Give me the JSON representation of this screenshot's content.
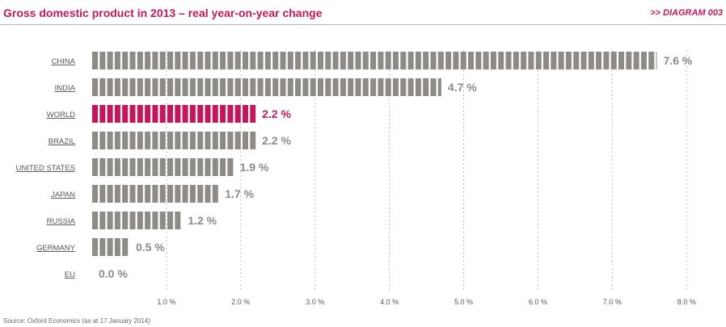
{
  "header": {
    "title": "Gross domestic product in 2013 – real year-on-year change",
    "diagram_id": ">> DIAGRAM 003"
  },
  "source": "Source: Oxford Economics (as at 17 January 2014)",
  "colors": {
    "accent": "#c2185b",
    "bar": "#8e8a86",
    "label_text": "#555555",
    "value_text": "#8e8a86"
  },
  "chart_data": {
    "type": "bar",
    "orientation": "horizontal",
    "categories": [
      "CHINA",
      "INDIA",
      "WORLD",
      "BRAZIL",
      "UNITED STATES",
      "JAPAN",
      "RUSSIA",
      "GERMANY",
      "EU"
    ],
    "values": [
      7.6,
      4.7,
      2.2,
      2.2,
      1.9,
      1.7,
      1.2,
      0.5,
      0.0
    ],
    "value_labels": [
      "7.6 %",
      "4.7 %",
      "2.2 %",
      "2.2 %",
      "1.9 %",
      "1.7 %",
      "1.2 %",
      "0.5 %",
      "0.0 %"
    ],
    "highlight": "WORLD",
    "xlim": [
      0,
      8
    ],
    "x_ticks": [
      1,
      2,
      3,
      4,
      5,
      6,
      7,
      8
    ],
    "x_tick_labels": [
      "1.0 %",
      "2.0 %",
      "3.0 %",
      "4.0 %",
      "5.0 %",
      "6.0 %",
      "7.0 %",
      "8.0 %"
    ],
    "grid": "vertical dashed",
    "bar_style": "segmented"
  }
}
